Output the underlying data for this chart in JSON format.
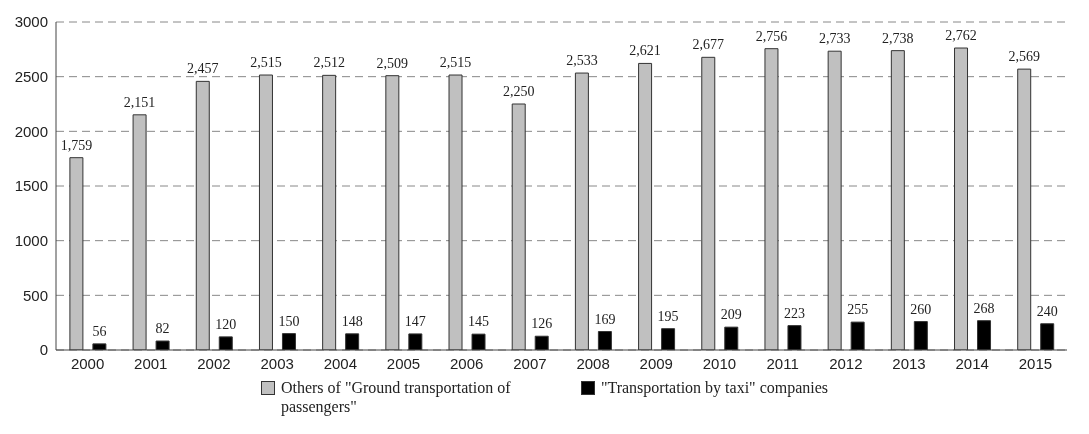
{
  "chart_data": {
    "type": "bar",
    "categories": [
      "2000",
      "2001",
      "2002",
      "2003",
      "2004",
      "2005",
      "2006",
      "2007",
      "2008",
      "2009",
      "2010",
      "2011",
      "2012",
      "2013",
      "2014",
      "2015"
    ],
    "series": [
      {
        "name": "Others of \"Ground transportation of passengers\"",
        "color": "#c0c0c0",
        "values": [
          1759,
          2151,
          2457,
          2515,
          2512,
          2509,
          2515,
          2250,
          2533,
          2621,
          2677,
          2756,
          2733,
          2738,
          2762,
          2569
        ],
        "value_labels": [
          "1,759",
          "2,151",
          "2,457",
          "2,515",
          "2,512",
          "2,509",
          "2,515",
          "2,250",
          "2,533",
          "2,621",
          "2,677",
          "2,756",
          "2,733",
          "2,738",
          "2,762",
          "2,569"
        ]
      },
      {
        "name": "\"Transportation by taxi\" companies",
        "color": "#000000",
        "values": [
          56,
          82,
          120,
          150,
          148,
          147,
          145,
          126,
          169,
          195,
          209,
          223,
          255,
          260,
          268,
          240
        ],
        "value_labels": [
          "56",
          "82",
          "120",
          "150",
          "148",
          "147",
          "145",
          "126",
          "169",
          "195",
          "209",
          "223",
          "255",
          "260",
          "268",
          "240"
        ]
      }
    ],
    "ylim": [
      0,
      3000
    ],
    "yticks": [
      0,
      500,
      1000,
      1500,
      2000,
      2500,
      3000
    ],
    "grid": "y",
    "legend": "bottom"
  }
}
